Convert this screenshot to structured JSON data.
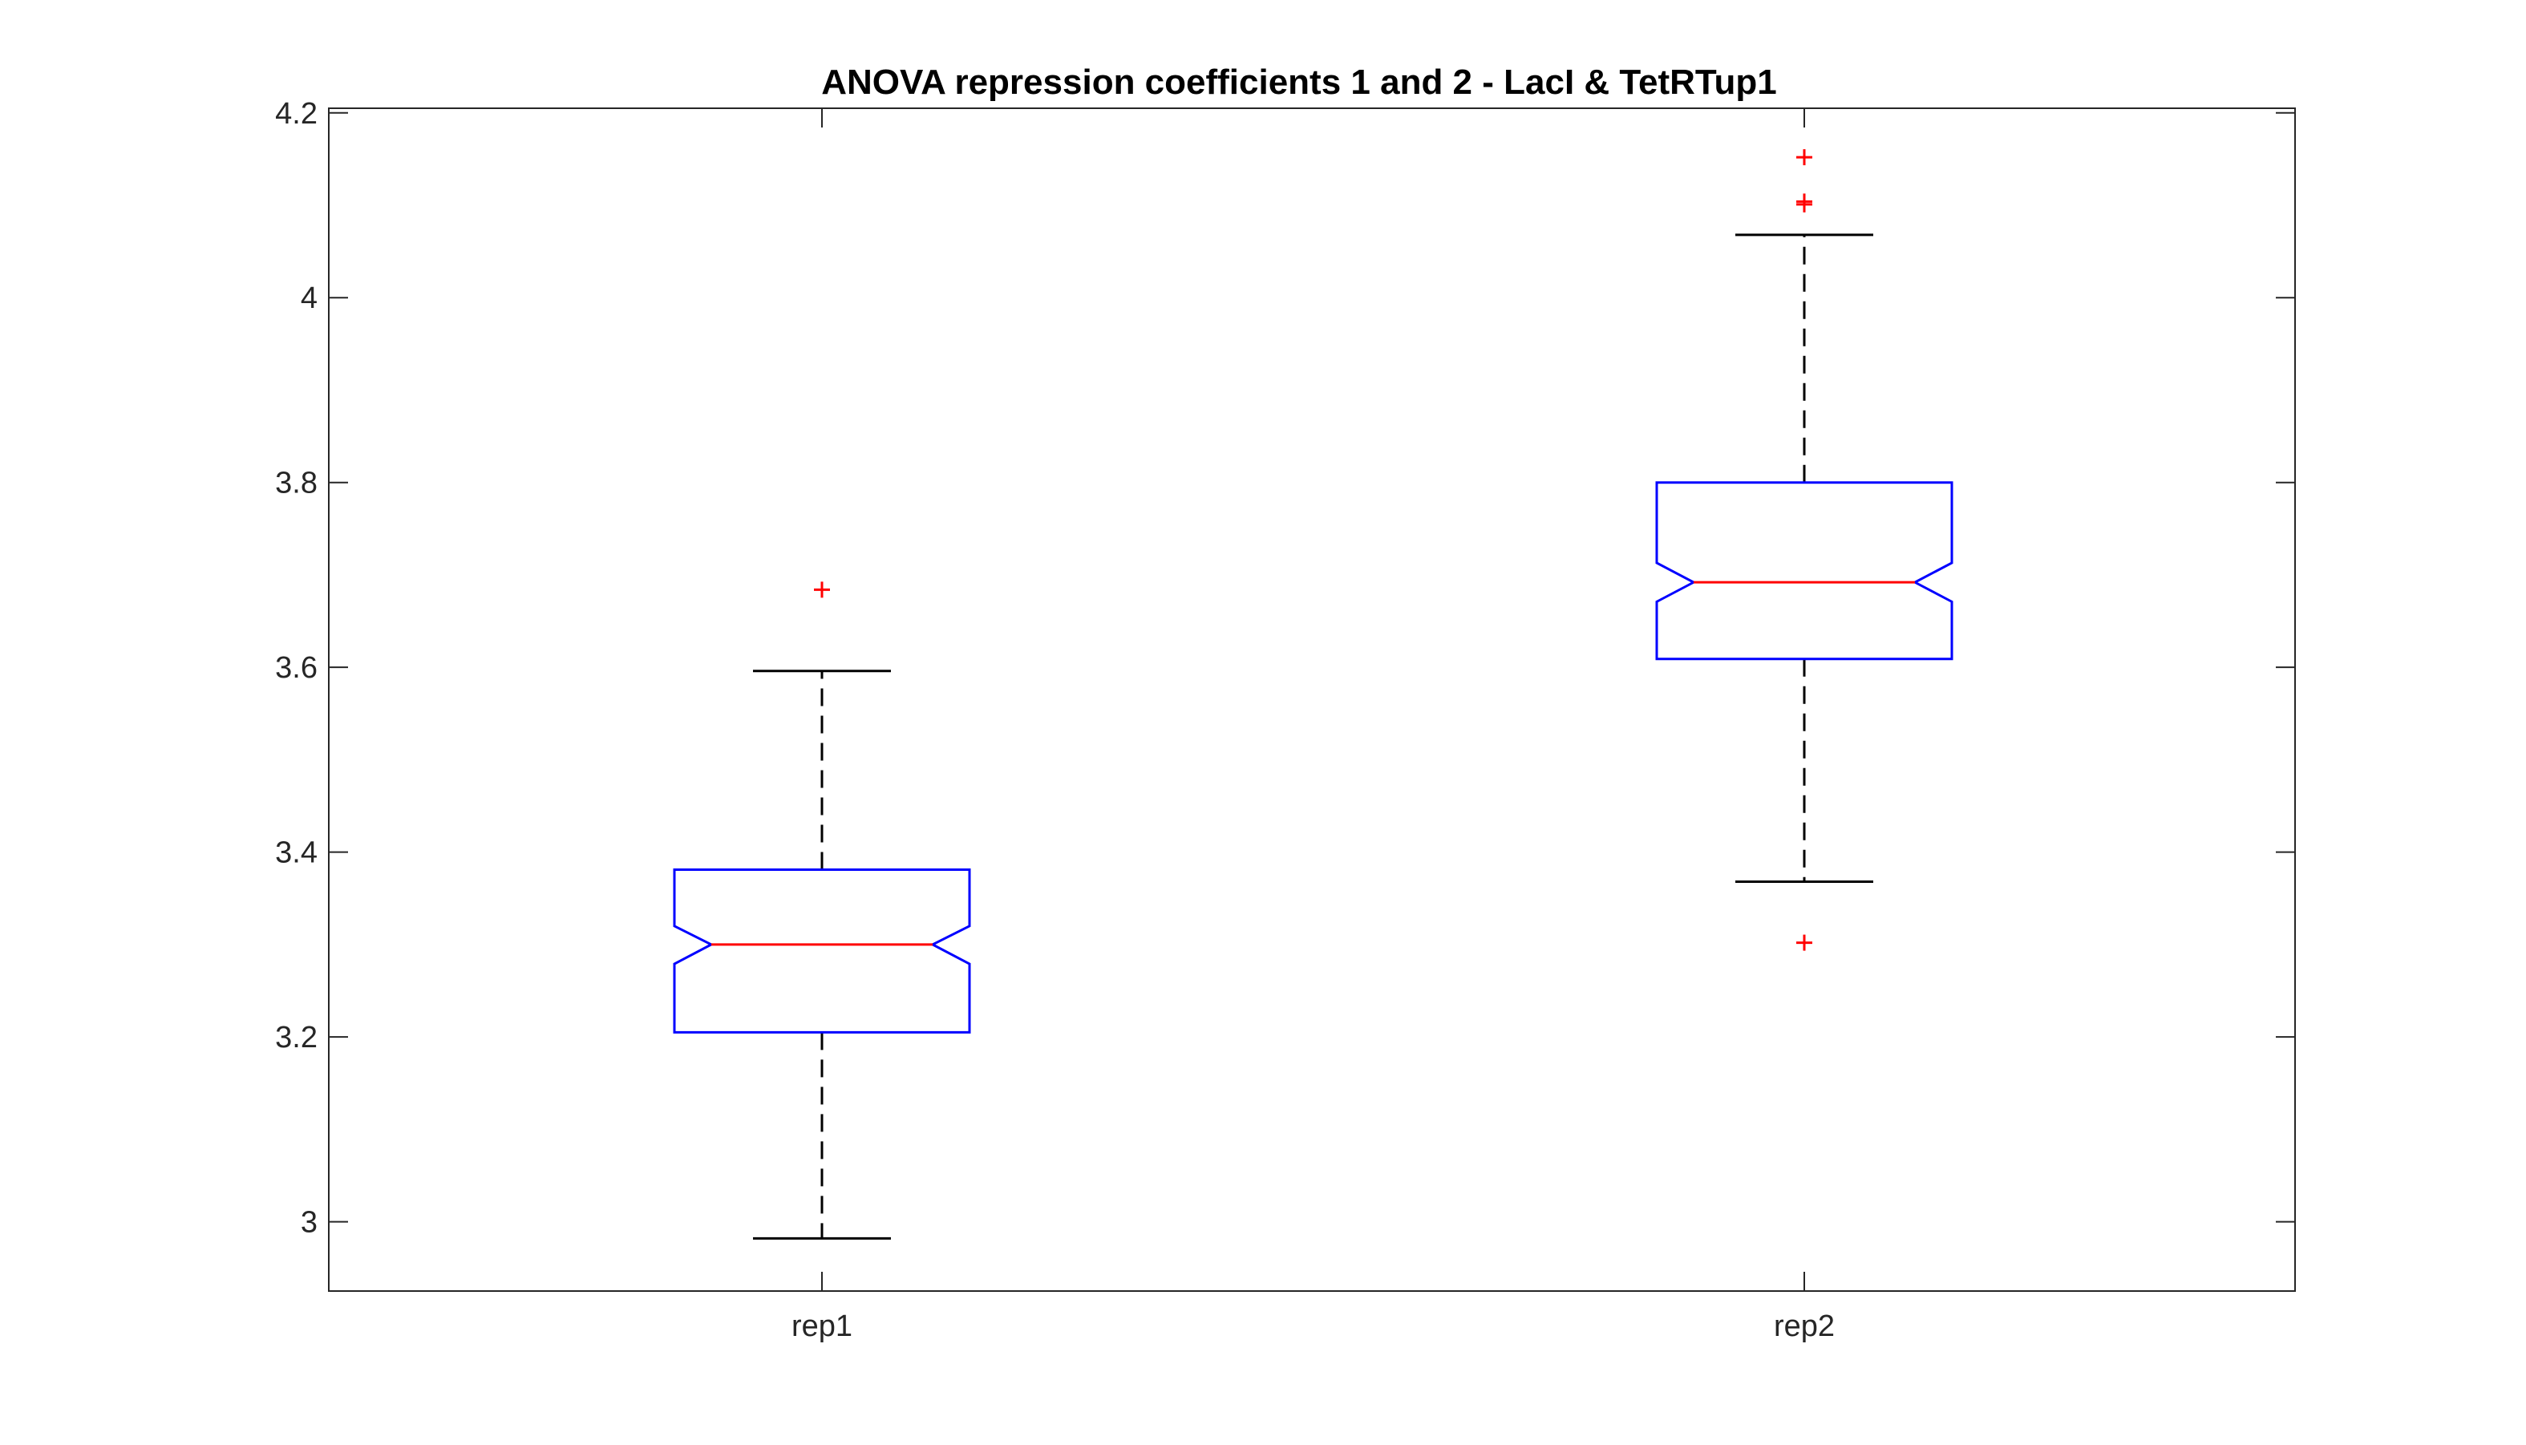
{
  "chart_data": {
    "type": "boxplot",
    "title": "ANOVA repression coefficients 1 and 2 - LacI & TetRTup1",
    "xlabel": "",
    "ylabel": "",
    "ylim": [
      2.925,
      4.205
    ],
    "yticks": [
      3,
      3.2,
      3.4,
      3.6,
      3.8,
      4,
      4.2
    ],
    "ytick_labels": [
      "3",
      "3.2",
      "3.4",
      "3.6",
      "3.8",
      "4",
      "4.2"
    ],
    "grid": false,
    "notched": true,
    "categories": [
      "rep1",
      "rep2"
    ],
    "boxes": [
      {
        "label": "rep1",
        "whisker_low": 2.982,
        "q1": 3.205,
        "notch_low": 3.279,
        "median": 3.3,
        "notch_high": 3.32,
        "q3": 3.381,
        "whisker_high": 3.596,
        "outliers": [
          3.684
        ]
      },
      {
        "label": "rep2",
        "whisker_low": 3.368,
        "q1": 3.609,
        "notch_low": 3.671,
        "median": 3.692,
        "notch_high": 3.713,
        "q3": 3.8,
        "whisker_high": 4.068,
        "outliers": [
          3.302,
          4.101,
          4.104,
          4.152
        ]
      }
    ],
    "colors": {
      "box": "#0000ff",
      "median": "#ff0000",
      "whisker": "#000000",
      "outlier": "#ff0000",
      "axis": "#262626"
    }
  }
}
